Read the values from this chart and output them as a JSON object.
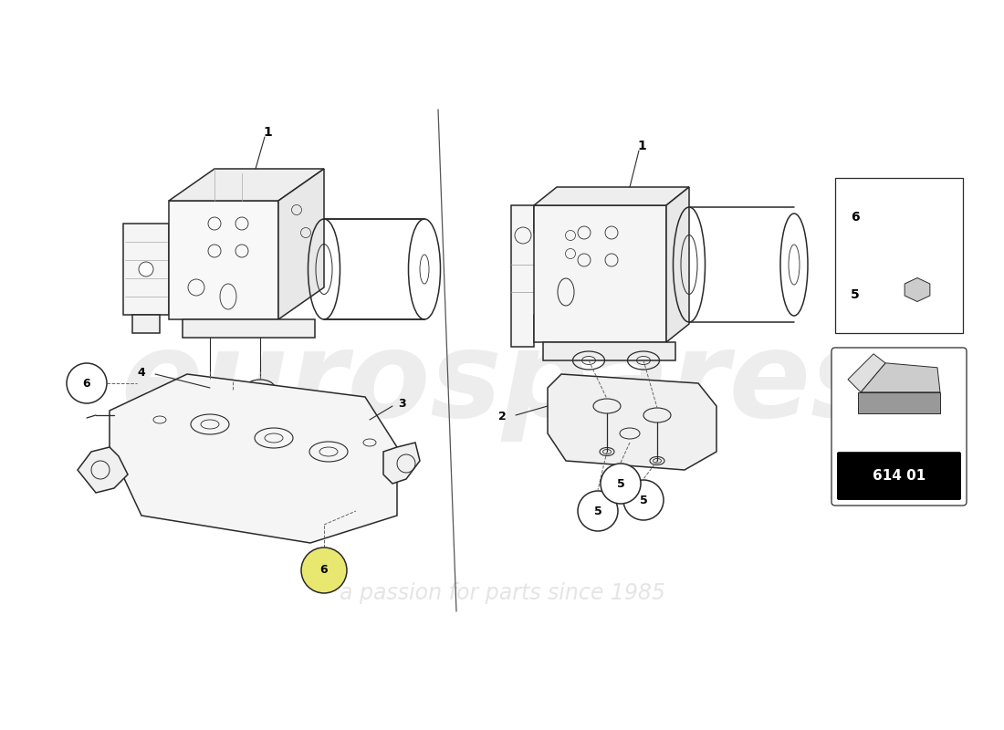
{
  "bg_color": "#ffffff",
  "line_color": "#2a2a2a",
  "part_number": "614 01",
  "watermark_text1": "eurospares",
  "watermark_text2": "a passion for parts since 1985",
  "fig_w": 11.0,
  "fig_h": 8.0,
  "dpi": 100
}
